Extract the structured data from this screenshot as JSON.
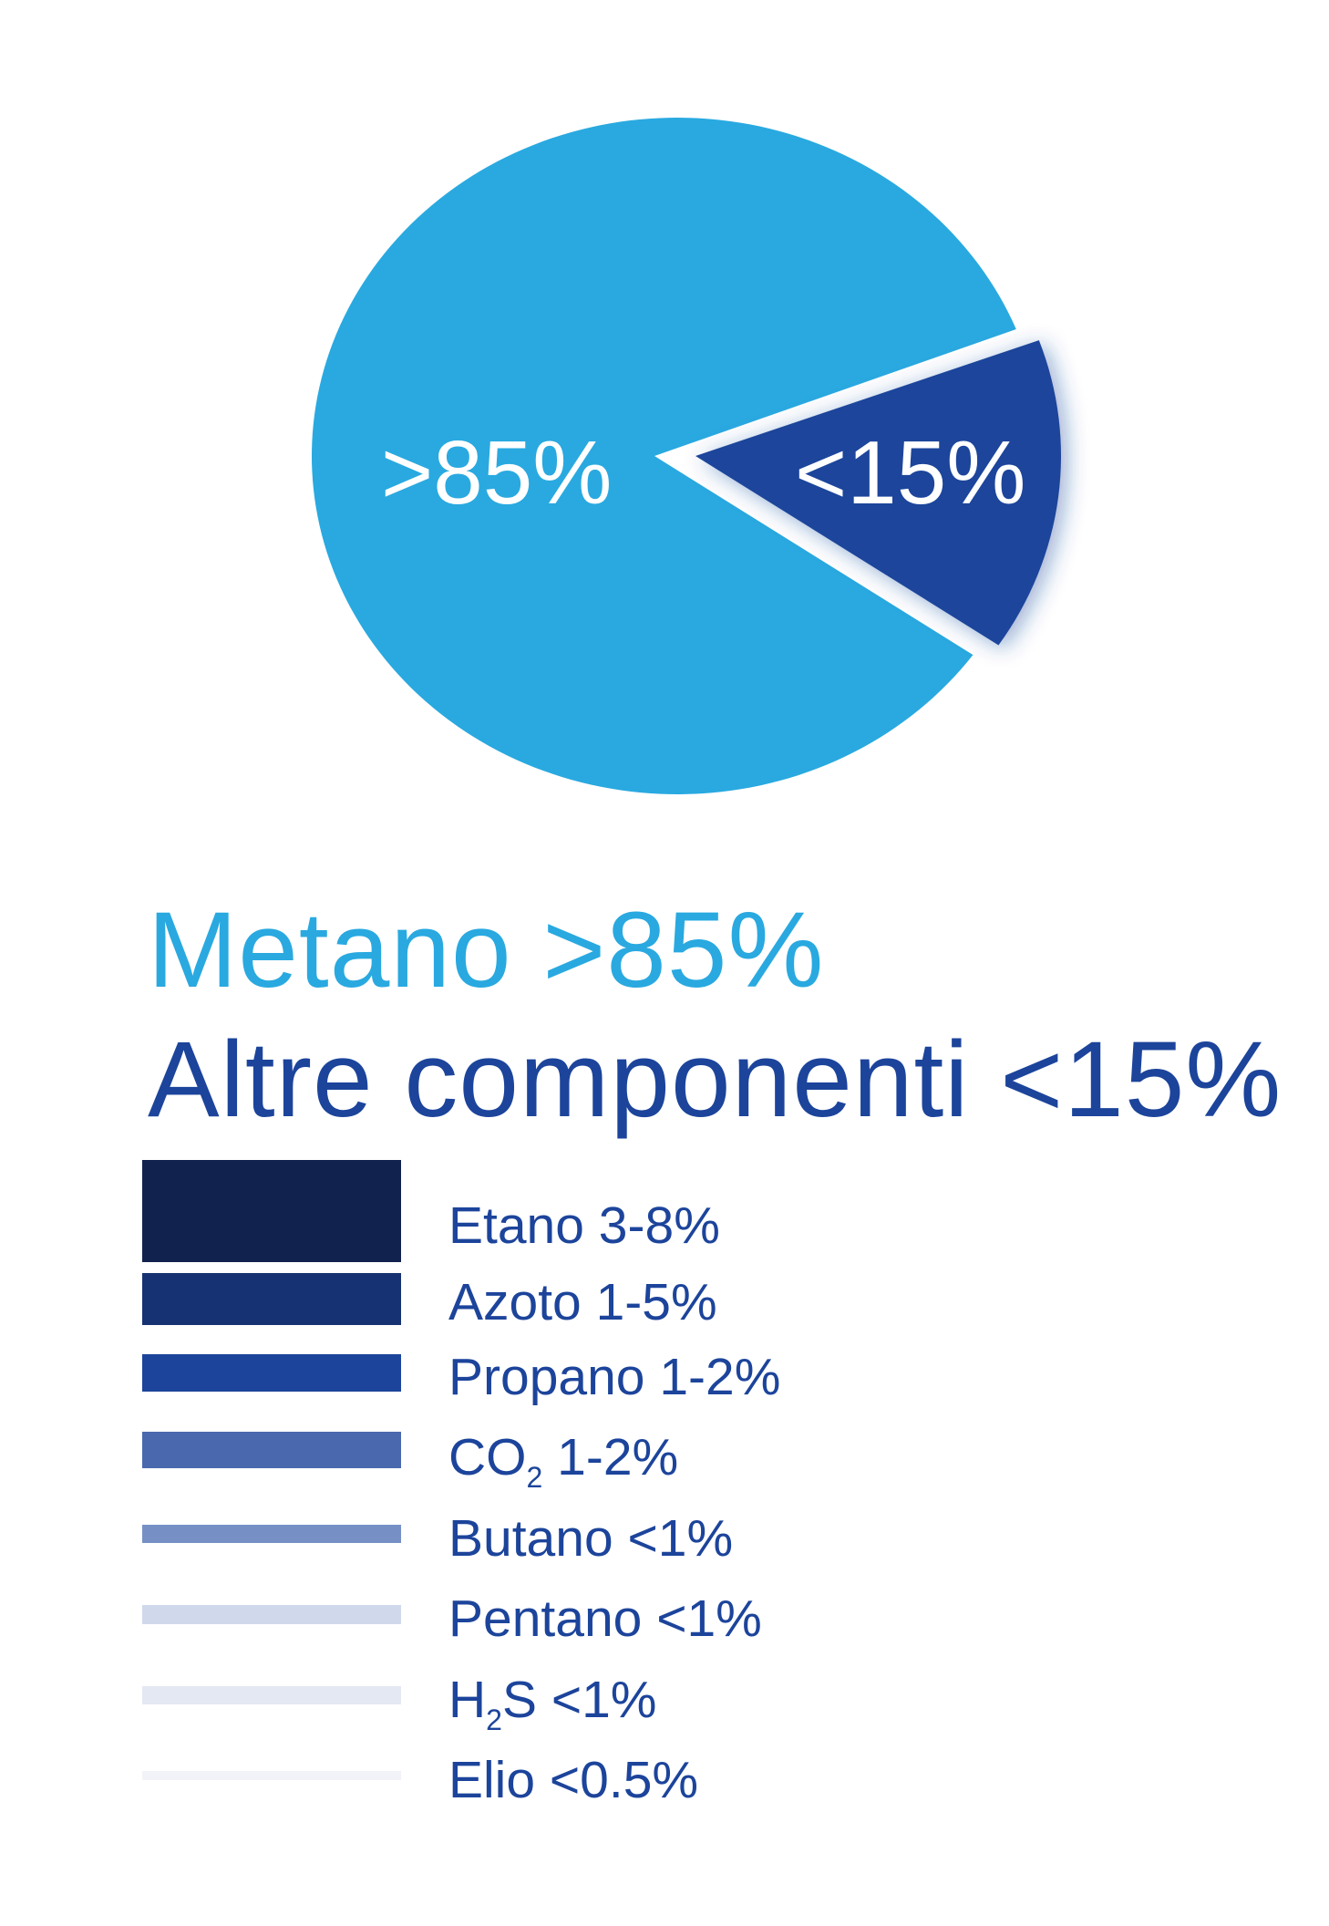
{
  "chart_data": {
    "type": "pie",
    "slices": [
      {
        "name": "Metano",
        "label": ">85%",
        "value": 85,
        "color": "#29a9e0"
      },
      {
        "name": "Altre componenti",
        "label": "<15%",
        "value": 15,
        "color": "#1c449b",
        "exploded": true
      }
    ]
  },
  "headings": {
    "metano": "Metano >85%",
    "altre": "Altre componenti <15%",
    "metano_color": "#29a9e0",
    "altre_color": "#1c449b"
  },
  "legend": [
    {
      "name": "Etano",
      "sub": "",
      "suffix": " 3-8%",
      "color": "#12224f"
    },
    {
      "name": "Azoto",
      "sub": "",
      "suffix": " 1-5%",
      "color": "#163272"
    },
    {
      "name": "Propano",
      "sub": "",
      "suffix": " 1-2%",
      "color": "#1c449b"
    },
    {
      "name": "CO",
      "sub": "2",
      "suffix": " 1-2%",
      "color": "#4a68ae"
    },
    {
      "name": "Butano",
      "sub": "",
      "suffix": " <1%",
      "color": "#7690c6"
    },
    {
      "name": "Pentano",
      "sub": "",
      "suffix": " <1%",
      "color": "#d0d9eb"
    },
    {
      "name": "H",
      "sub": "2",
      "suffix": "S <1%",
      "color": "#e3e8f3"
    },
    {
      "name": "Elio",
      "sub": "",
      "suffix": " <0.5%",
      "color": "#f1f3f8"
    }
  ]
}
